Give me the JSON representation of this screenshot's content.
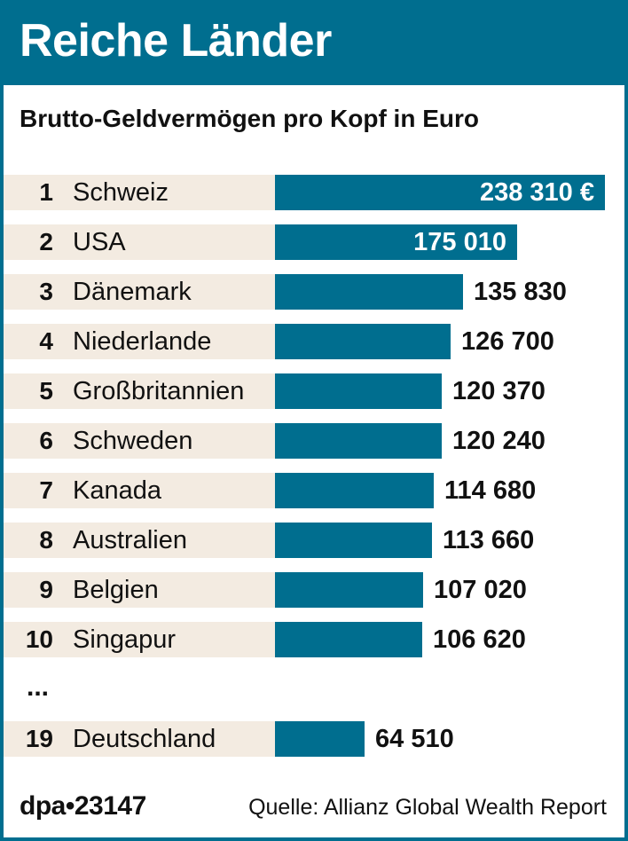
{
  "title": "Reiche Länder",
  "subtitle": "Brutto-Geldvermögen pro Kopf in Euro",
  "ellipsis": "...",
  "credit": "dpa•23147",
  "source": "Quelle: Allianz Global Wealth Report",
  "colors": {
    "accent": "#006e8f",
    "row_background": "#f3ebe1"
  },
  "chart_data": {
    "type": "bar",
    "orientation": "horizontal",
    "title": "Reiche Länder",
    "subtitle": "Brutto-Geldvermögen pro Kopf in Euro",
    "xlim": [
      0,
      238310
    ],
    "rows": [
      {
        "rank": "1",
        "country": "Schweiz",
        "value": 238310,
        "label": "238 310 €"
      },
      {
        "rank": "2",
        "country": "USA",
        "value": 175010,
        "label": "175 010"
      },
      {
        "rank": "3",
        "country": "Dänemark",
        "value": 135830,
        "label": "135 830"
      },
      {
        "rank": "4",
        "country": "Niederlande",
        "value": 126700,
        "label": "126 700"
      },
      {
        "rank": "5",
        "country": "Großbritannien",
        "value": 120370,
        "label": "120 370"
      },
      {
        "rank": "6",
        "country": "Schweden",
        "value": 120240,
        "label": "120 240"
      },
      {
        "rank": "7",
        "country": "Kanada",
        "value": 114680,
        "label": "114 680"
      },
      {
        "rank": "8",
        "country": "Australien",
        "value": 113660,
        "label": "113 660"
      },
      {
        "rank": "9",
        "country": "Belgien",
        "value": 107020,
        "label": "107 020"
      },
      {
        "rank": "10",
        "country": "Singapur",
        "value": 106620,
        "label": "106 620"
      },
      {
        "rank": "19",
        "country": "Deutschland",
        "value": 64510,
        "label": "64 510"
      }
    ]
  }
}
